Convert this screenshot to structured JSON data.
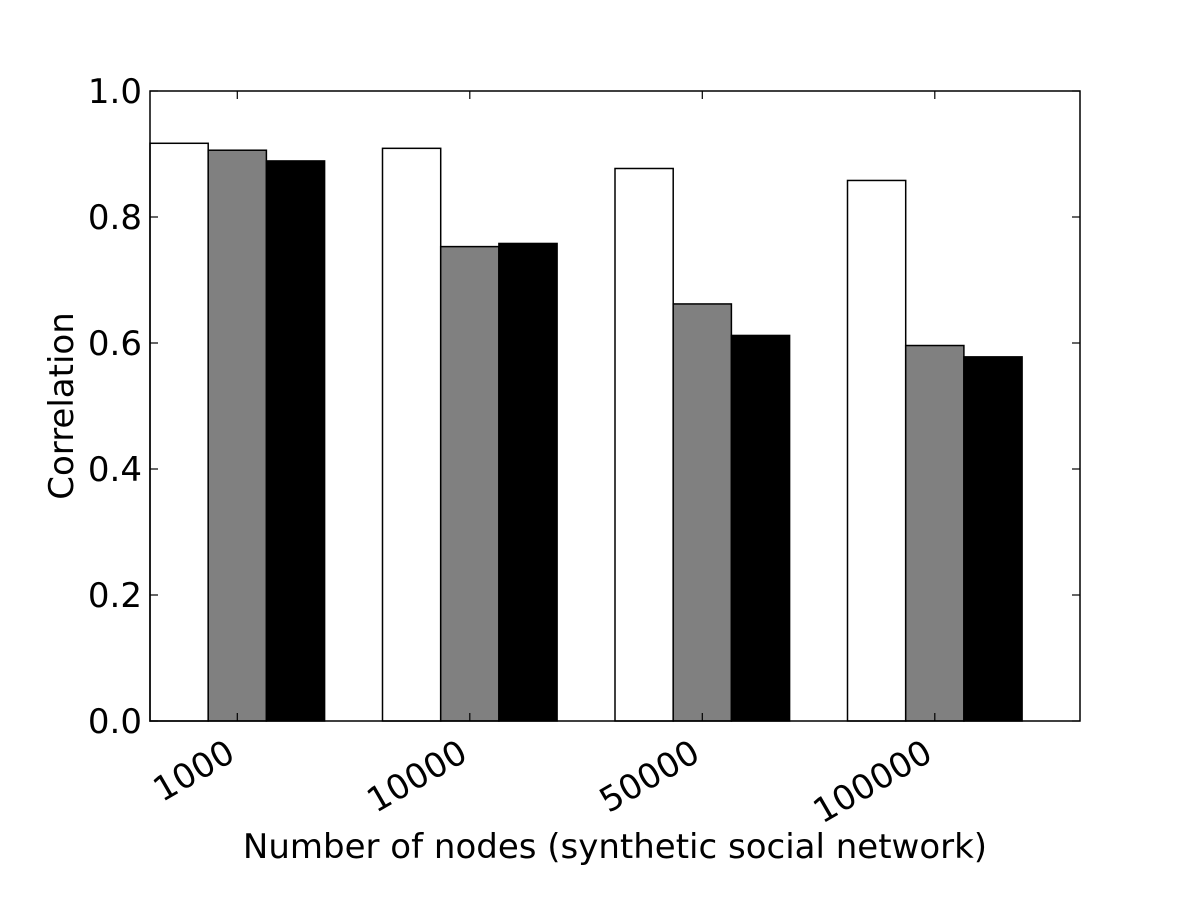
{
  "chart_data": {
    "type": "bar",
    "title": "",
    "xlabel": "Number of nodes (synthetic social network)",
    "ylabel": "Correlation",
    "categories": [
      "1000",
      "10000",
      "50000",
      "100000"
    ],
    "ylim": [
      0.0,
      1.0
    ],
    "yticks": [
      0.0,
      0.2,
      0.4,
      0.6,
      0.8,
      1.0
    ],
    "ytick_labels": [
      "0.0",
      "0.2",
      "0.4",
      "0.6",
      "0.8",
      "1.0"
    ],
    "grid": false,
    "legend": "none",
    "series": [
      {
        "color": "#ffffff",
        "values": [
          0.917,
          0.909,
          0.877,
          0.858
        ]
      },
      {
        "color": "#808080",
        "values": [
          0.906,
          0.753,
          0.662,
          0.596
        ]
      },
      {
        "color": "#000000",
        "values": [
          0.889,
          0.758,
          0.612,
          0.578
        ]
      }
    ]
  }
}
